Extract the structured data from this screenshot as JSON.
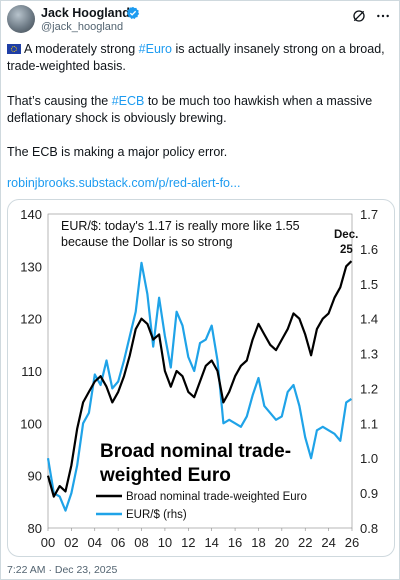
{
  "author": {
    "name": "Jack Hoogland",
    "handle": "@jack_hoogland"
  },
  "tweet": {
    "p1_a": "A moderately strong ",
    "p1_hashtag": "#Euro",
    "p1_b": " is actually insanely strong on a broad, trade-weighted basis.",
    "p2_a": "That’s causing the ",
    "p2_hashtag": "#ECB",
    "p2_b": " to be much too hawkish when a massive deflationary shock is obviously brewing.",
    "p3": "The ECB is making a major policy error.",
    "link": "robinjbrooks.substack.com/p/red-alert-fo..."
  },
  "timestamp": "7:22 AM · Dec 23, 2025",
  "chart_data": {
    "type": "line",
    "title_line1": "EUR/$: today's 1.17 is really more like 1.55",
    "title_line2": "because the Dollar is so strong",
    "big_label_line1": "Broad nominal trade-",
    "big_label_line2": "weighted Euro",
    "annotation_line1": "Dec.",
    "annotation_line2": "25",
    "x_ticks": [
      "00",
      "02",
      "04",
      "06",
      "08",
      "10",
      "12",
      "14",
      "16",
      "18",
      "20",
      "22",
      "24",
      "26"
    ],
    "x_range": [
      2000,
      2026
    ],
    "y_left_ticks": [
      "140",
      "130",
      "120",
      "110",
      "100",
      "90",
      "80"
    ],
    "y_left_range": [
      80,
      140
    ],
    "y_right_ticks": [
      "1.7",
      "1.6",
      "1.5",
      "1.4",
      "1.3",
      "1.2",
      "1.1",
      "1.0",
      "0.9",
      "0.8"
    ],
    "y_right_range": [
      0.8,
      1.7
    ],
    "legend": "bottom-center",
    "colors": {
      "broad": "#000000",
      "eurusd": "#1fa3e8"
    },
    "series": [
      {
        "name": "Broad nominal trade-weighted Euro",
        "axis": "left",
        "x": [
          2000,
          2000.5,
          2001,
          2001.5,
          2002,
          2002.5,
          2003,
          2003.5,
          2004,
          2004.5,
          2005,
          2005.5,
          2006,
          2006.5,
          2007,
          2007.5,
          2008,
          2008.5,
          2009,
          2009.5,
          2010,
          2010.5,
          2011,
          2011.5,
          2012,
          2012.5,
          2013,
          2013.5,
          2014,
          2014.5,
          2015,
          2015.5,
          2016,
          2016.5,
          2017,
          2017.5,
          2018,
          2018.5,
          2019,
          2019.5,
          2020,
          2020.5,
          2021,
          2021.5,
          2022,
          2022.5,
          2023,
          2023.5,
          2024,
          2024.5,
          2025,
          2025.5,
          2025.95
        ],
        "values": [
          90,
          86,
          88,
          87,
          92,
          99,
          104,
          106,
          108,
          109,
          107,
          104,
          106,
          109,
          113,
          118,
          120,
          119,
          116,
          117,
          110,
          107,
          110,
          109,
          106,
          105,
          108,
          111,
          112,
          110,
          104,
          106,
          109,
          111,
          112,
          116,
          119,
          117,
          115,
          114,
          116,
          118,
          121,
          120,
          117,
          113,
          118,
          120,
          121,
          124,
          126,
          130,
          131
        ]
      },
      {
        "name": "EUR/$ (rhs)",
        "axis": "right",
        "x": [
          2000,
          2000.5,
          2001,
          2001.5,
          2002,
          2002.5,
          2003,
          2003.5,
          2004,
          2004.5,
          2005,
          2005.5,
          2006,
          2006.5,
          2007,
          2007.5,
          2008,
          2008.5,
          2009,
          2009.5,
          2010,
          2010.5,
          2011,
          2011.5,
          2012,
          2012.5,
          2013,
          2013.5,
          2014,
          2014.5,
          2015,
          2015.5,
          2016,
          2016.5,
          2017,
          2017.5,
          2018,
          2018.5,
          2019,
          2019.5,
          2020,
          2020.5,
          2021,
          2021.5,
          2022,
          2022.5,
          2023,
          2023.5,
          2024,
          2024.5,
          2025,
          2025.5,
          2025.95
        ],
        "values": [
          1.0,
          0.9,
          0.89,
          0.85,
          0.9,
          0.98,
          1.1,
          1.13,
          1.24,
          1.21,
          1.28,
          1.2,
          1.22,
          1.28,
          1.35,
          1.42,
          1.56,
          1.47,
          1.32,
          1.46,
          1.35,
          1.26,
          1.42,
          1.38,
          1.29,
          1.25,
          1.33,
          1.34,
          1.38,
          1.28,
          1.1,
          1.11,
          1.1,
          1.09,
          1.12,
          1.18,
          1.23,
          1.15,
          1.13,
          1.11,
          1.12,
          1.19,
          1.21,
          1.15,
          1.06,
          1.0,
          1.08,
          1.09,
          1.08,
          1.07,
          1.05,
          1.16,
          1.17
        ]
      }
    ]
  }
}
